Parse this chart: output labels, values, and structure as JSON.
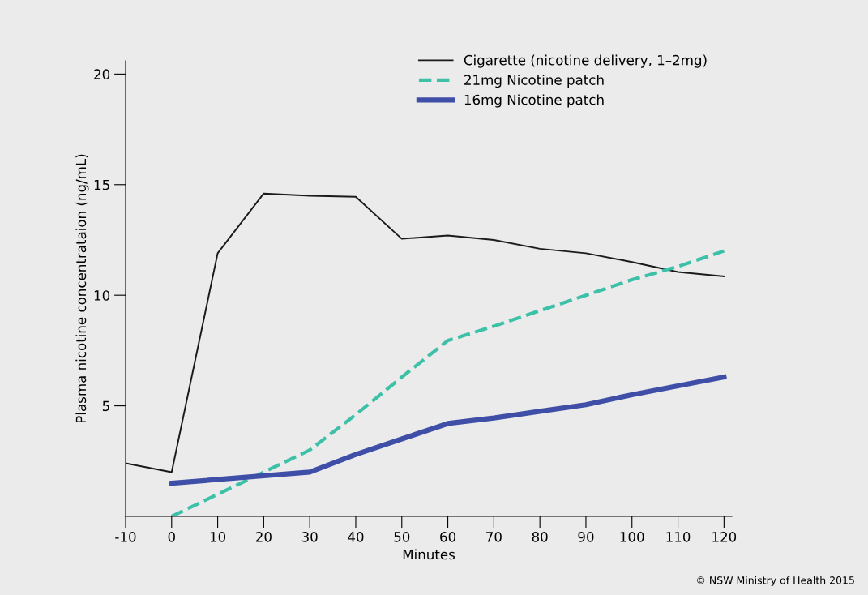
{
  "chart_data": {
    "type": "line",
    "xlabel": "Minutes",
    "ylabel": "Plasma nicotine concentrataion (ng/mL)",
    "xlim": [
      -10,
      121.7
    ],
    "ylim": [
      0,
      20.6
    ],
    "xticks": [
      -10,
      0,
      10,
      20,
      30,
      40,
      50,
      60,
      70,
      80,
      90,
      100,
      110,
      120
    ],
    "yticks": [
      5,
      10,
      15,
      20
    ],
    "grid": false,
    "legend": "top right",
    "annotations": [
      "© NSW Ministry of Health 2015"
    ],
    "series": [
      {
        "name": "Cigarette (nicotine delivery, 1–2mg)",
        "color": "#1a1a1a",
        "line_style": "solid",
        "x": [
          -10,
          0,
          10,
          20,
          30,
          40,
          50,
          60,
          70,
          80,
          90,
          100,
          110,
          120
        ],
        "values": [
          2.4,
          2.0,
          11.9,
          14.6,
          14.5,
          14.45,
          12.55,
          12.7,
          12.5,
          12.1,
          11.9,
          11.5,
          11.05,
          10.85
        ]
      },
      {
        "name": "21mg Nicotine patch",
        "color": "#3cc1a8",
        "line_style": "dashed",
        "x": [
          0,
          30,
          40,
          50,
          60,
          70,
          80,
          90,
          100,
          110,
          120
        ],
        "values": [
          0,
          3.0,
          4.6,
          6.3,
          7.95,
          8.6,
          9.3,
          10.0,
          10.7,
          11.3,
          12.0
        ]
      },
      {
        "name": "16mg Nicotine patch",
        "color": "#3f4fa8",
        "line_style": "solid",
        "x": [
          0,
          30,
          40,
          50,
          60,
          70,
          80,
          90,
          100,
          110,
          120
        ],
        "values": [
          1.5,
          2.0,
          2.8,
          3.5,
          4.2,
          4.45,
          4.75,
          5.05,
          5.5,
          5.9,
          6.3
        ]
      }
    ]
  }
}
